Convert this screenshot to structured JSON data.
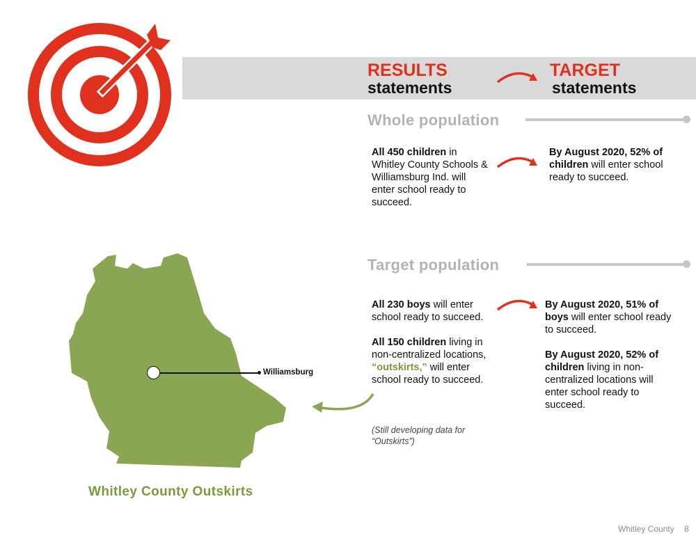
{
  "header": {
    "results_word": "RESULTS",
    "results_sub": "statements",
    "target_word": "TARGET",
    "target_sub": "statements"
  },
  "whole": {
    "title": "Whole population",
    "result_bold": "All 450 children",
    "result_rest": " in Whitley County Schools & Williamsburg Ind. will enter school ready to succeed.",
    "target_bold": "By August 2020, 52% of children",
    "target_rest": " will enter school ready to succeed."
  },
  "target_pop": {
    "title": "Target population",
    "result1_bold": "All 230 boys",
    "result1_rest": " will enter school ready to succeed.",
    "result2_bold": "All 150 children",
    "result2_mid": " living in non-centralized locations, ",
    "result2_green": "“outskirts,”",
    "result2_rest": " will enter school ready to succeed.",
    "target1_bold": "By August 2020, 51% of boys",
    "target1_rest": " will enter school ready to succeed.",
    "target2_bold": "By August 2020, 52% of children",
    "target2_rest": " living in non-centralized locations will enter school ready to succeed.",
    "note": "(Still developing data for “Outskirts”)"
  },
  "map": {
    "marker_label": "Williamsburg",
    "caption": "Whitley County Outskirts"
  },
  "footer": {
    "county": "Whitley County",
    "page": "8"
  },
  "colors": {
    "accent_red": "#e0301e",
    "map_green": "#8aa653",
    "caption_green": "#7a9a3f",
    "banner_gray": "#d9d9d9"
  },
  "icons": [
    "target-icon",
    "curved-arrow-icon"
  ]
}
